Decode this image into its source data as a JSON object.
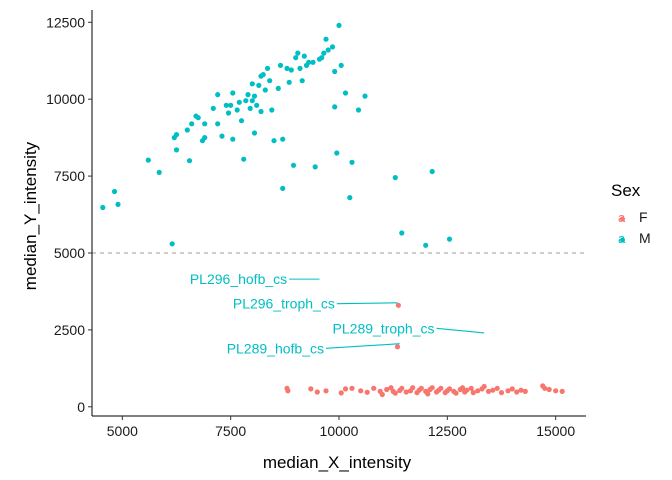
{
  "chart_data": {
    "type": "scatter",
    "xlabel": "median_X_intensity",
    "ylabel": "median_Y_intensity",
    "xlim": [
      4300,
      15700
    ],
    "ylim": [
      -300,
      12900
    ],
    "x_ticks": [
      5000,
      7500,
      10000,
      12500,
      15000
    ],
    "x_tick_labels": [
      "5000",
      "7500",
      "10000",
      "12500",
      "15000"
    ],
    "y_ticks": [
      0,
      2500,
      5000,
      7500,
      10000,
      12500
    ],
    "y_tick_labels": [
      "0",
      "2500",
      "5000",
      "7500",
      "10000",
      "12500"
    ],
    "grid": false,
    "reference_line": {
      "y": 5000,
      "style": "dashed",
      "color": "#999999"
    },
    "legend": {
      "title": "Sex",
      "placement": "right",
      "entries": [
        {
          "label": "F",
          "key_glyph": "a",
          "color": "#F8766D"
        },
        {
          "label": "M",
          "key_glyph": "a",
          "color": "#00BFC4"
        }
      ]
    },
    "series": [
      {
        "name": "M",
        "color": "#00BFC4",
        "points": [
          [
            4550,
            6480
          ],
          [
            4820,
            7000
          ],
          [
            4900,
            6580
          ],
          [
            5600,
            8020
          ],
          [
            5850,
            7620
          ],
          [
            6150,
            5300
          ],
          [
            6200,
            8750
          ],
          [
            6250,
            8850
          ],
          [
            6250,
            8350
          ],
          [
            6500,
            9000
          ],
          [
            6550,
            8000
          ],
          [
            6600,
            9200
          ],
          [
            6700,
            9450
          ],
          [
            6750,
            9400
          ],
          [
            6850,
            8650
          ],
          [
            6900,
            8750
          ],
          [
            6900,
            9200
          ],
          [
            7100,
            9700
          ],
          [
            7200,
            10150
          ],
          [
            7200,
            9200
          ],
          [
            7300,
            8800
          ],
          [
            7400,
            9800
          ],
          [
            7450,
            9550
          ],
          [
            7500,
            9800
          ],
          [
            7550,
            8700
          ],
          [
            7550,
            10200
          ],
          [
            7650,
            9650
          ],
          [
            7700,
            9900
          ],
          [
            7750,
            9300
          ],
          [
            7800,
            8050
          ],
          [
            7850,
            9950
          ],
          [
            7900,
            10150
          ],
          [
            7950,
            9700
          ],
          [
            8000,
            9950
          ],
          [
            8000,
            10500
          ],
          [
            8050,
            8900
          ],
          [
            8050,
            10100
          ],
          [
            8100,
            9800
          ],
          [
            8150,
            10450
          ],
          [
            8200,
            10750
          ],
          [
            8200,
            9600
          ],
          [
            8250,
            10800
          ],
          [
            8300,
            10300
          ],
          [
            8350,
            11000
          ],
          [
            8400,
            10600
          ],
          [
            8450,
            9650
          ],
          [
            8500,
            8650
          ],
          [
            8600,
            10350
          ],
          [
            8650,
            11100
          ],
          [
            8700,
            8700
          ],
          [
            8700,
            7100
          ],
          [
            8800,
            11000
          ],
          [
            8850,
            10550
          ],
          [
            8900,
            10950
          ],
          [
            8950,
            7850
          ],
          [
            9000,
            11350
          ],
          [
            9050,
            11500
          ],
          [
            9100,
            11000
          ],
          [
            9150,
            10600
          ],
          [
            9200,
            11400
          ],
          [
            9250,
            11100
          ],
          [
            9300,
            11200
          ],
          [
            9400,
            11200
          ],
          [
            9450,
            7800
          ],
          [
            9550,
            11300
          ],
          [
            9600,
            11350
          ],
          [
            9650,
            11500
          ],
          [
            9700,
            11950
          ],
          [
            9750,
            11600
          ],
          [
            9850,
            11700
          ],
          [
            9900,
            10900
          ],
          [
            9900,
            9750
          ],
          [
            9950,
            8250
          ],
          [
            10000,
            12400
          ],
          [
            10050,
            11100
          ],
          [
            10150,
            10200
          ],
          [
            10250,
            6800
          ],
          [
            10300,
            7950
          ],
          [
            10450,
            9650
          ],
          [
            10600,
            10100
          ],
          [
            11300,
            7450
          ],
          [
            11450,
            5650
          ],
          [
            12000,
            5250
          ],
          [
            12150,
            7650
          ],
          [
            12550,
            5450
          ]
        ]
      },
      {
        "name": "F",
        "color": "#F8766D",
        "points": [
          [
            8800,
            600
          ],
          [
            8820,
            520
          ],
          [
            9350,
            580
          ],
          [
            9500,
            480
          ],
          [
            9700,
            520
          ],
          [
            10050,
            450
          ],
          [
            10150,
            580
          ],
          [
            10300,
            600
          ],
          [
            10500,
            520
          ],
          [
            10650,
            470
          ],
          [
            10800,
            600
          ],
          [
            10950,
            500
          ],
          [
            11000,
            400
          ],
          [
            11100,
            560
          ],
          [
            11200,
            620
          ],
          [
            11250,
            500
          ],
          [
            11300,
            440
          ],
          [
            11400,
            530
          ],
          [
            11450,
            600
          ],
          [
            11550,
            480
          ],
          [
            11650,
            520
          ],
          [
            11700,
            620
          ],
          [
            11800,
            460
          ],
          [
            11850,
            540
          ],
          [
            11900,
            600
          ],
          [
            12000,
            500
          ],
          [
            12050,
            420
          ],
          [
            12100,
            560
          ],
          [
            12150,
            620
          ],
          [
            12250,
            480
          ],
          [
            12300,
            540
          ],
          [
            12350,
            600
          ],
          [
            12450,
            460
          ],
          [
            12500,
            520
          ],
          [
            12550,
            580
          ],
          [
            12650,
            500
          ],
          [
            12700,
            440
          ],
          [
            12800,
            560
          ],
          [
            12850,
            620
          ],
          [
            12900,
            480
          ],
          [
            12950,
            540
          ],
          [
            13050,
            600
          ],
          [
            13100,
            460
          ],
          [
            13200,
            520
          ],
          [
            13300,
            580
          ],
          [
            13350,
            660
          ],
          [
            13450,
            500
          ],
          [
            13550,
            540
          ],
          [
            13650,
            600
          ],
          [
            13750,
            460
          ],
          [
            13900,
            520
          ],
          [
            14000,
            580
          ],
          [
            14100,
            480
          ],
          [
            14200,
            540
          ],
          [
            14300,
            500
          ],
          [
            14700,
            680
          ],
          [
            14750,
            600
          ],
          [
            14850,
            560
          ],
          [
            15000,
            520
          ],
          [
            15150,
            500
          ],
          [
            11350,
            1950
          ],
          [
            11370,
            3300
          ]
        ]
      }
    ],
    "annotations": [
      {
        "label": "PL296_hofb_cs",
        "color": "#00BFC4",
        "point": [
          9550,
          4150
        ],
        "line_start": [
          8850,
          4150
        ]
      },
      {
        "label": "PL296_troph_cs",
        "color": "#00BFC4",
        "point": [
          11350,
          3380
        ],
        "line_start": [
          9950,
          3350
        ]
      },
      {
        "label": "PL289_troph_cs",
        "color": "#00BFC4",
        "point": [
          13350,
          2400
        ],
        "line_start": [
          12250,
          2550
        ]
      },
      {
        "label": "PL289_hofb_cs",
        "color": "#00BFC4",
        "point": [
          11400,
          2050
        ],
        "line_start": [
          9700,
          1900
        ]
      }
    ]
  }
}
